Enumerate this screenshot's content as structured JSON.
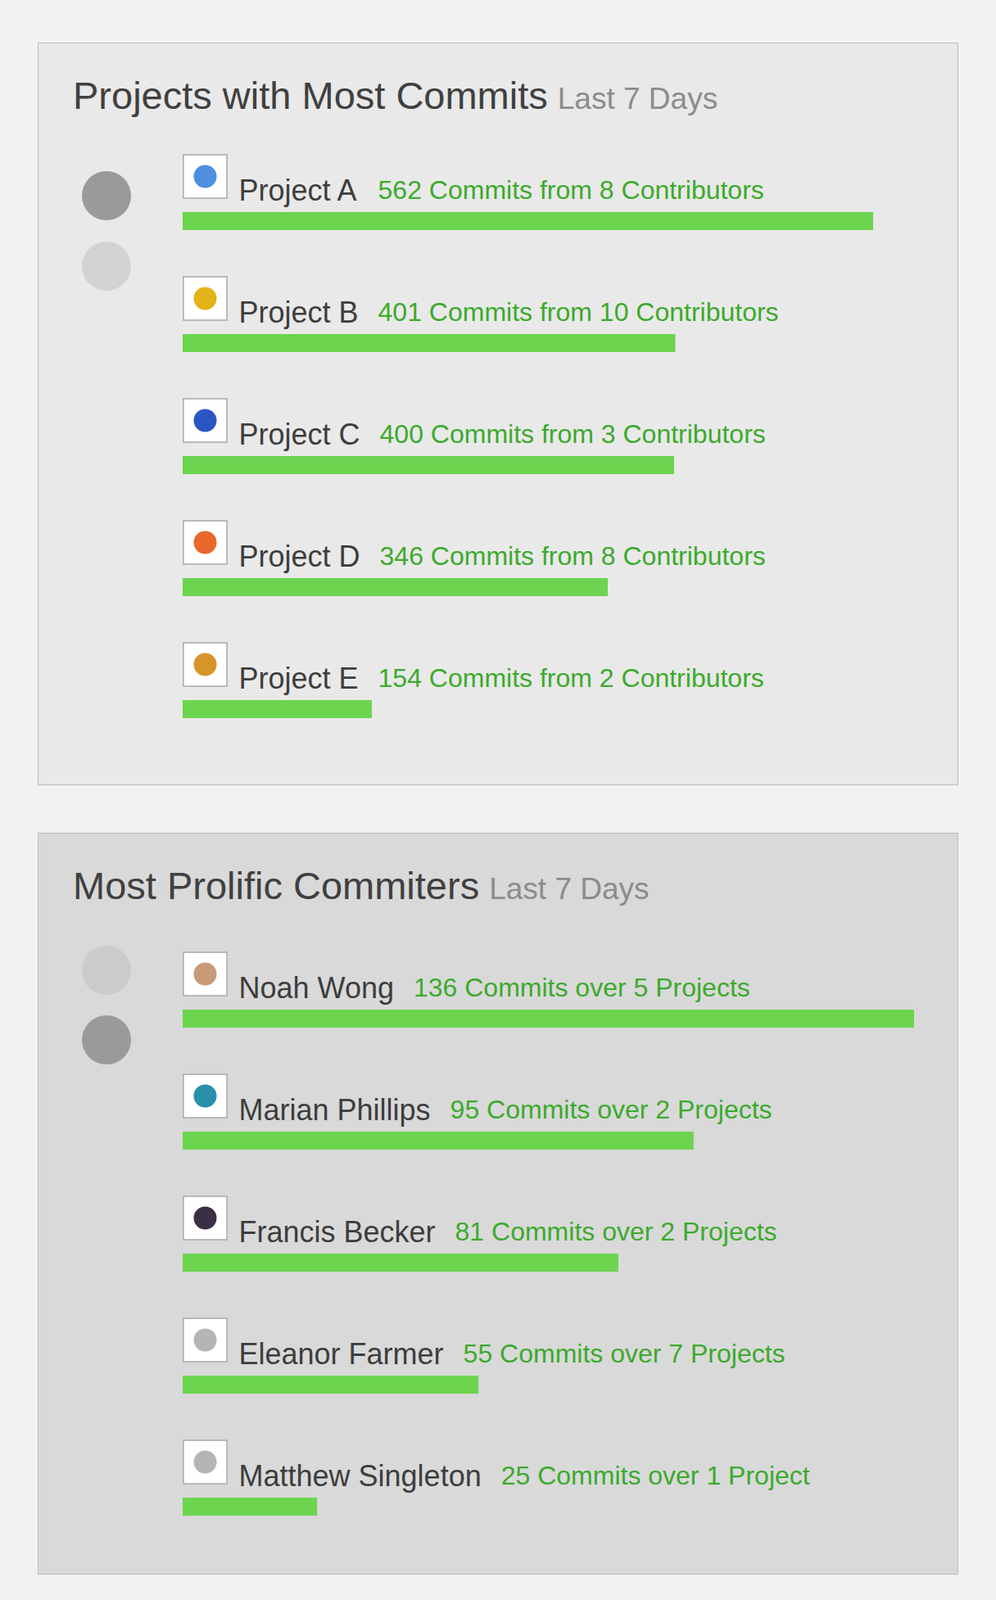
{
  "chart_data": [
    {
      "type": "bar",
      "orientation": "horizontal",
      "title": "Projects with Most Commits",
      "subtitle": "Last 7 Days",
      "categories": [
        "Project A",
        "Project B",
        "Project C",
        "Project D",
        "Project E"
      ],
      "values": [
        562,
        401,
        400,
        346,
        154
      ],
      "value_labels": [
        "562 Commits from 8 Contributors",
        "401 Commits from 10 Contributors",
        "400 Commits from 3 Contributors",
        "346 Commits from 8 Contributors",
        "154 Commits from 2 Contributors"
      ],
      "data_labels": true,
      "tick_labels": false,
      "grid": false,
      "color": "#6cd44f"
    },
    {
      "type": "bar",
      "orientation": "horizontal",
      "title": "Most Prolific Commiters",
      "subtitle": "Last 7 Days",
      "categories": [
        "Noah Wong",
        "Marian Phillips",
        "Francis Becker",
        "Eleanor Farmer",
        "Matthew Singleton"
      ],
      "values": [
        136,
        95,
        81,
        55,
        25
      ],
      "value_labels": [
        "136 Commits over 5 Projects",
        "95 Commits over 2 Projects",
        "81 Commits over 2 Projects",
        "55 Commits over 7 Projects",
        "25 Commits over 1 Project"
      ],
      "data_labels": true,
      "tick_labels": false,
      "grid": false,
      "color": "#6cd44f"
    }
  ]
}
